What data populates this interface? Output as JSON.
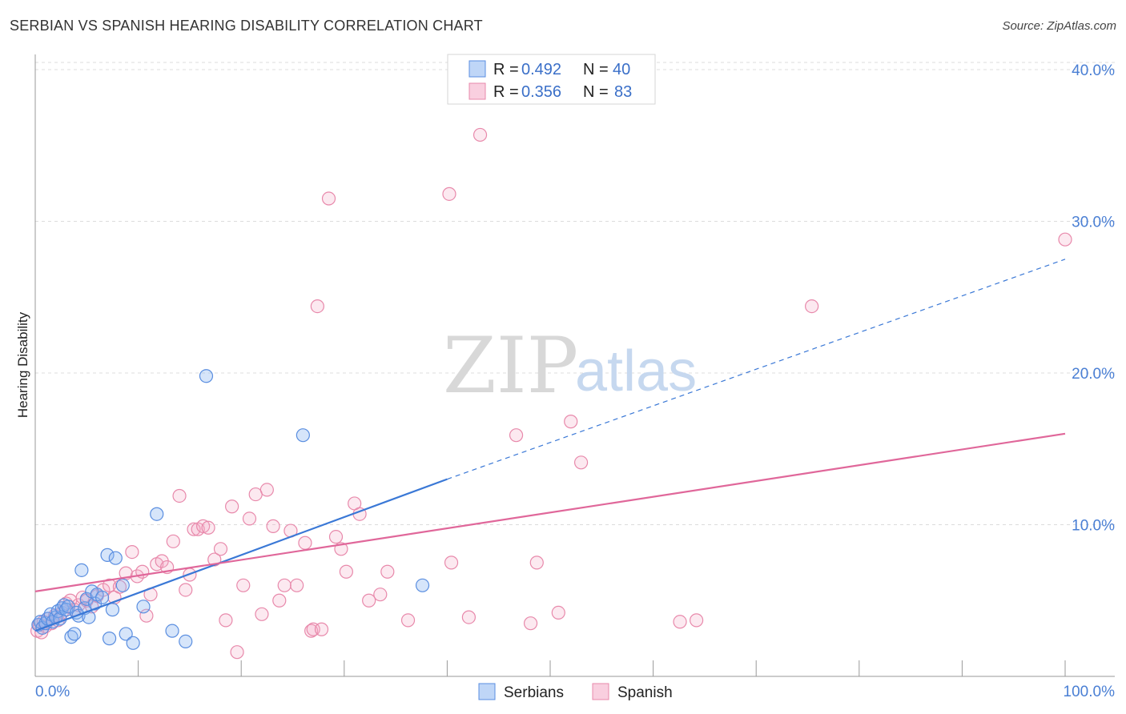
{
  "title": "SERBIAN VS SPANISH HEARING DISABILITY CORRELATION CHART",
  "source": "Source: ZipAtlas.com",
  "watermark": {
    "zip": "ZIP",
    "atlas": "atlas"
  },
  "chart_data": {
    "type": "scatter",
    "ylabel": "Hearing Disability",
    "xlim": [
      0,
      100
    ],
    "ylim": [
      0,
      41
    ],
    "x_tick_labels": [
      {
        "value": 0,
        "label": "0.0%"
      },
      {
        "value": 100,
        "label": "100.0%"
      }
    ],
    "y_tick_labels": [
      {
        "value": 10,
        "label": "10.0%"
      },
      {
        "value": 20,
        "label": "20.0%"
      },
      {
        "value": 30,
        "label": "30.0%"
      },
      {
        "value": 40,
        "label": "40.0%"
      }
    ],
    "x_minor_ticks": [
      10,
      20,
      30,
      40,
      50,
      60,
      70,
      80,
      90,
      100
    ],
    "grid": true,
    "legend": [
      {
        "name": "Serbians",
        "r_label": "R =",
        "r": "0.492",
        "n_label": "N =",
        "n": "40",
        "color": "#8ab4f0",
        "stroke": "#5a8ee0"
      },
      {
        "name": "Spanish",
        "r_label": "R =",
        "r": "0.356",
        "n_label": "N =",
        "n": "83",
        "color": "#f4a8c4",
        "stroke": "#e889ab"
      }
    ],
    "series": [
      {
        "name": "Serbians",
        "color": "#3a78d6",
        "points": [
          [
            0.3,
            3.4
          ],
          [
            0.5,
            3.6
          ],
          [
            0.7,
            3.2
          ],
          [
            1.0,
            3.5
          ],
          [
            1.2,
            3.8
          ],
          [
            1.5,
            4.1
          ],
          [
            1.7,
            3.6
          ],
          [
            2.0,
            3.9
          ],
          [
            2.2,
            4.3
          ],
          [
            2.4,
            3.8
          ],
          [
            2.6,
            4.5
          ],
          [
            2.8,
            4.7
          ],
          [
            3.0,
            4.4
          ],
          [
            3.2,
            4.6
          ],
          [
            3.5,
            2.6
          ],
          [
            3.8,
            2.8
          ],
          [
            4.0,
            4.2
          ],
          [
            4.2,
            4.0
          ],
          [
            4.5,
            7.0
          ],
          [
            4.8,
            4.5
          ],
          [
            5.0,
            5.1
          ],
          [
            5.2,
            3.9
          ],
          [
            5.5,
            5.6
          ],
          [
            5.8,
            4.8
          ],
          [
            6.0,
            5.4
          ],
          [
            6.5,
            5.2
          ],
          [
            7.0,
            8.0
          ],
          [
            7.2,
            2.5
          ],
          [
            7.5,
            4.4
          ],
          [
            7.8,
            7.8
          ],
          [
            8.5,
            6.0
          ],
          [
            8.8,
            2.8
          ],
          [
            9.5,
            2.2
          ],
          [
            10.5,
            4.6
          ],
          [
            11.8,
            10.7
          ],
          [
            13.3,
            3.0
          ],
          [
            14.6,
            2.3
          ],
          [
            16.6,
            19.8
          ],
          [
            26.0,
            15.9
          ],
          [
            37.6,
            6.0
          ]
        ],
        "trend": {
          "x0": 0,
          "y0": 3.0,
          "x1": 40,
          "y1": 13.0,
          "dash_x1": 100,
          "dash_y1": 27.5
        }
      },
      {
        "name": "Spanish",
        "color": "#e0679a",
        "points": [
          [
            0.2,
            3.0
          ],
          [
            0.4,
            3.4
          ],
          [
            0.6,
            2.9
          ],
          [
            0.8,
            3.6
          ],
          [
            1.0,
            3.3
          ],
          [
            1.3,
            3.8
          ],
          [
            1.6,
            3.5
          ],
          [
            1.9,
            4.0
          ],
          [
            2.2,
            3.7
          ],
          [
            2.6,
            4.2
          ],
          [
            3.0,
            4.8
          ],
          [
            3.4,
            5.0
          ],
          [
            3.8,
            4.4
          ],
          [
            4.2,
            4.7
          ],
          [
            4.6,
            5.2
          ],
          [
            5.0,
            5.0
          ],
          [
            5.5,
            4.6
          ],
          [
            6.0,
            5.3
          ],
          [
            6.6,
            5.7
          ],
          [
            7.2,
            6.0
          ],
          [
            7.7,
            5.2
          ],
          [
            8.2,
            5.9
          ],
          [
            8.8,
            6.8
          ],
          [
            9.4,
            8.2
          ],
          [
            9.9,
            6.6
          ],
          [
            10.4,
            6.9
          ],
          [
            10.8,
            4.0
          ],
          [
            11.2,
            5.4
          ],
          [
            11.8,
            7.4
          ],
          [
            12.3,
            7.6
          ],
          [
            12.8,
            7.2
          ],
          [
            13.4,
            8.9
          ],
          [
            14.0,
            11.9
          ],
          [
            14.6,
            5.7
          ],
          [
            15.0,
            6.7
          ],
          [
            15.4,
            9.7
          ],
          [
            15.8,
            9.7
          ],
          [
            16.3,
            9.9
          ],
          [
            16.8,
            9.8
          ],
          [
            17.4,
            7.7
          ],
          [
            18.0,
            8.4
          ],
          [
            18.5,
            3.7
          ],
          [
            19.1,
            11.2
          ],
          [
            19.6,
            1.6
          ],
          [
            20.2,
            6.0
          ],
          [
            20.8,
            10.4
          ],
          [
            21.4,
            12.0
          ],
          [
            22.0,
            4.1
          ],
          [
            22.5,
            12.3
          ],
          [
            23.1,
            9.9
          ],
          [
            23.7,
            5.0
          ],
          [
            24.2,
            6.0
          ],
          [
            24.8,
            9.6
          ],
          [
            25.4,
            6.0
          ],
          [
            26.2,
            8.8
          ],
          [
            26.8,
            3.0
          ],
          [
            27.0,
            3.1
          ],
          [
            27.4,
            24.4
          ],
          [
            27.8,
            3.1
          ],
          [
            28.5,
            31.5
          ],
          [
            29.2,
            9.2
          ],
          [
            29.7,
            8.4
          ],
          [
            30.2,
            6.9
          ],
          [
            31.0,
            11.4
          ],
          [
            31.5,
            10.7
          ],
          [
            32.4,
            5.0
          ],
          [
            33.5,
            5.4
          ],
          [
            34.2,
            6.9
          ],
          [
            36.2,
            3.7
          ],
          [
            40.2,
            31.8
          ],
          [
            40.4,
            7.5
          ],
          [
            42.1,
            3.9
          ],
          [
            43.2,
            35.7
          ],
          [
            46.7,
            15.9
          ],
          [
            48.1,
            3.5
          ],
          [
            48.7,
            7.5
          ],
          [
            50.8,
            4.2
          ],
          [
            52.0,
            16.8
          ],
          [
            53.0,
            14.1
          ],
          [
            62.6,
            3.6
          ],
          [
            75.4,
            24.4
          ],
          [
            100.0,
            28.8
          ],
          [
            64.2,
            3.7
          ]
        ],
        "trend": {
          "x0": 0,
          "y0": 5.6,
          "x1": 100,
          "y1": 16.0
        }
      }
    ]
  }
}
